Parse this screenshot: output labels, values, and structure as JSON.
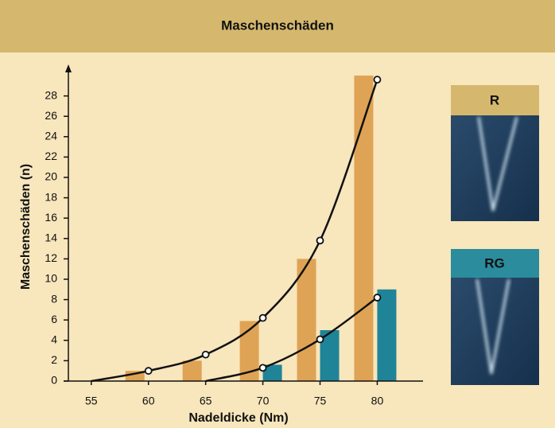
{
  "chart_data": {
    "type": "bar",
    "title": "Maschenschäden",
    "x_label": "Nadeldicke (Nm)",
    "y_label": "Maschenschäden (n)",
    "xlim": [
      53,
      84
    ],
    "xticks": [
      55,
      60,
      65,
      70,
      75,
      80
    ],
    "ylim": [
      0,
      30
    ],
    "yticks": [
      0,
      2,
      4,
      6,
      8,
      10,
      12,
      14,
      16,
      18,
      20,
      22,
      24,
      26,
      28
    ],
    "series": [
      {
        "type": "bar",
        "color": "#dfa355",
        "x": [
          60,
          65,
          70,
          75,
          80
        ],
        "values": [
          1,
          2,
          5.9,
          12,
          30
        ]
      },
      {
        "type": "bar",
        "color": "#1f8497",
        "x": [
          60,
          65,
          70,
          75,
          80
        ],
        "values": [
          null,
          null,
          1.6,
          5,
          9
        ]
      },
      {
        "type": "line",
        "color": "#111111",
        "x": [
          55,
          60,
          65,
          70,
          75,
          80
        ],
        "values": [
          0,
          1,
          2.6,
          6.2,
          13.8,
          29.6
        ]
      },
      {
        "type": "line",
        "color": "#111111",
        "x": [
          65,
          70,
          75,
          80
        ],
        "values": [
          0,
          1.3,
          4.1,
          8.2
        ]
      }
    ]
  },
  "panels": [
    {
      "label": "R"
    },
    {
      "label": "RG"
    }
  ]
}
